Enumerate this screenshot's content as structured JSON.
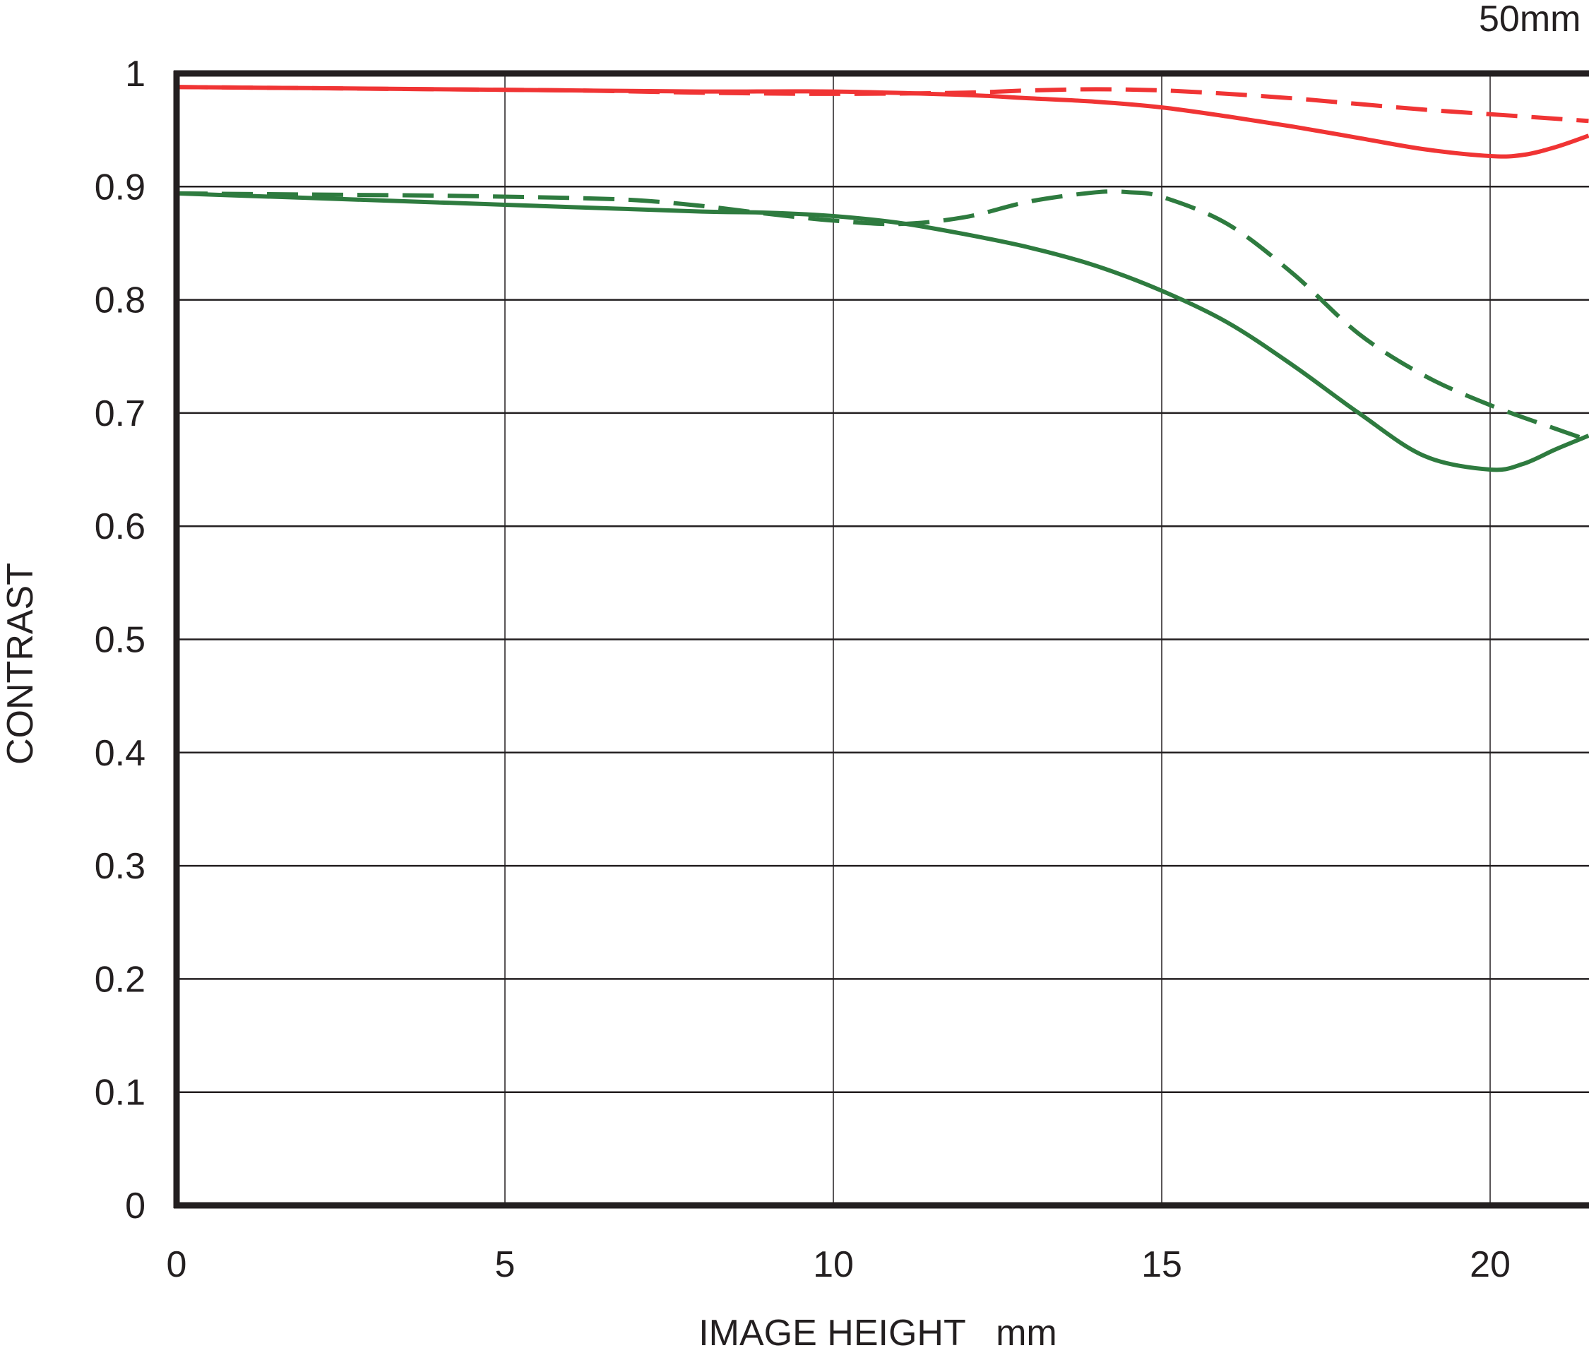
{
  "chart_data": {
    "type": "line",
    "title": "50mm",
    "xlabel": "IMAGE HEIGHT   mm",
    "ylabel": "CONTRAST",
    "xlim": [
      0,
      21.5
    ],
    "ylim": [
      0,
      1
    ],
    "x_ticks": [
      "0",
      "5",
      "10",
      "15",
      "20"
    ],
    "x_tick_values": [
      0,
      5,
      10,
      15,
      20
    ],
    "y_ticks": [
      "0",
      "0.1",
      "0.2",
      "0.3",
      "0.4",
      "0.5",
      "0.6",
      "0.7",
      "0.8",
      "0.9",
      "1"
    ],
    "y_tick_values": [
      0,
      0.1,
      0.2,
      0.3,
      0.4,
      0.5,
      0.6,
      0.7,
      0.8,
      0.9,
      1.0
    ],
    "grid": true,
    "series": [
      {
        "color": "#f03434",
        "style": "solid",
        "x": [
          0,
          2,
          4,
          6,
          8,
          10,
          12,
          13,
          14,
          15,
          16,
          17,
          18,
          19,
          20,
          20.5,
          21,
          21.5
        ],
        "y": [
          0.988,
          0.987,
          0.986,
          0.985,
          0.984,
          0.984,
          0.981,
          0.978,
          0.975,
          0.97,
          0.962,
          0.953,
          0.943,
          0.933,
          0.927,
          0.928,
          0.935,
          0.945
        ]
      },
      {
        "color": "#f03434",
        "style": "dashed",
        "x": [
          0,
          2,
          4,
          6,
          8,
          10,
          12,
          13,
          14,
          15,
          16,
          17,
          18,
          19,
          20,
          21,
          21.5
        ],
        "y": [
          0.988,
          0.987,
          0.986,
          0.985,
          0.983,
          0.982,
          0.983,
          0.985,
          0.986,
          0.985,
          0.982,
          0.978,
          0.973,
          0.968,
          0.964,
          0.96,
          0.958
        ]
      },
      {
        "color": "#2e7b3f",
        "style": "solid",
        "x": [
          0,
          2,
          4,
          6,
          8,
          9,
          10,
          11,
          12,
          13,
          14,
          15,
          16,
          17,
          18,
          19,
          20,
          20.5,
          21,
          21.5
        ],
        "y": [
          0.894,
          0.89,
          0.886,
          0.882,
          0.878,
          0.877,
          0.874,
          0.868,
          0.858,
          0.846,
          0.83,
          0.808,
          0.78,
          0.742,
          0.7,
          0.662,
          0.65,
          0.655,
          0.668,
          0.68
        ]
      },
      {
        "color": "#2e7b3f",
        "style": "dashed",
        "x": [
          0,
          2,
          4,
          6,
          7,
          8,
          9,
          10,
          11,
          12,
          13,
          14,
          14.5,
          15,
          16,
          17,
          18,
          19,
          20,
          21,
          21.5
        ],
        "y": [
          0.894,
          0.893,
          0.892,
          0.89,
          0.888,
          0.883,
          0.876,
          0.87,
          0.867,
          0.873,
          0.887,
          0.895,
          0.895,
          0.891,
          0.867,
          0.823,
          0.77,
          0.733,
          0.707,
          0.686,
          0.676
        ]
      }
    ]
  }
}
